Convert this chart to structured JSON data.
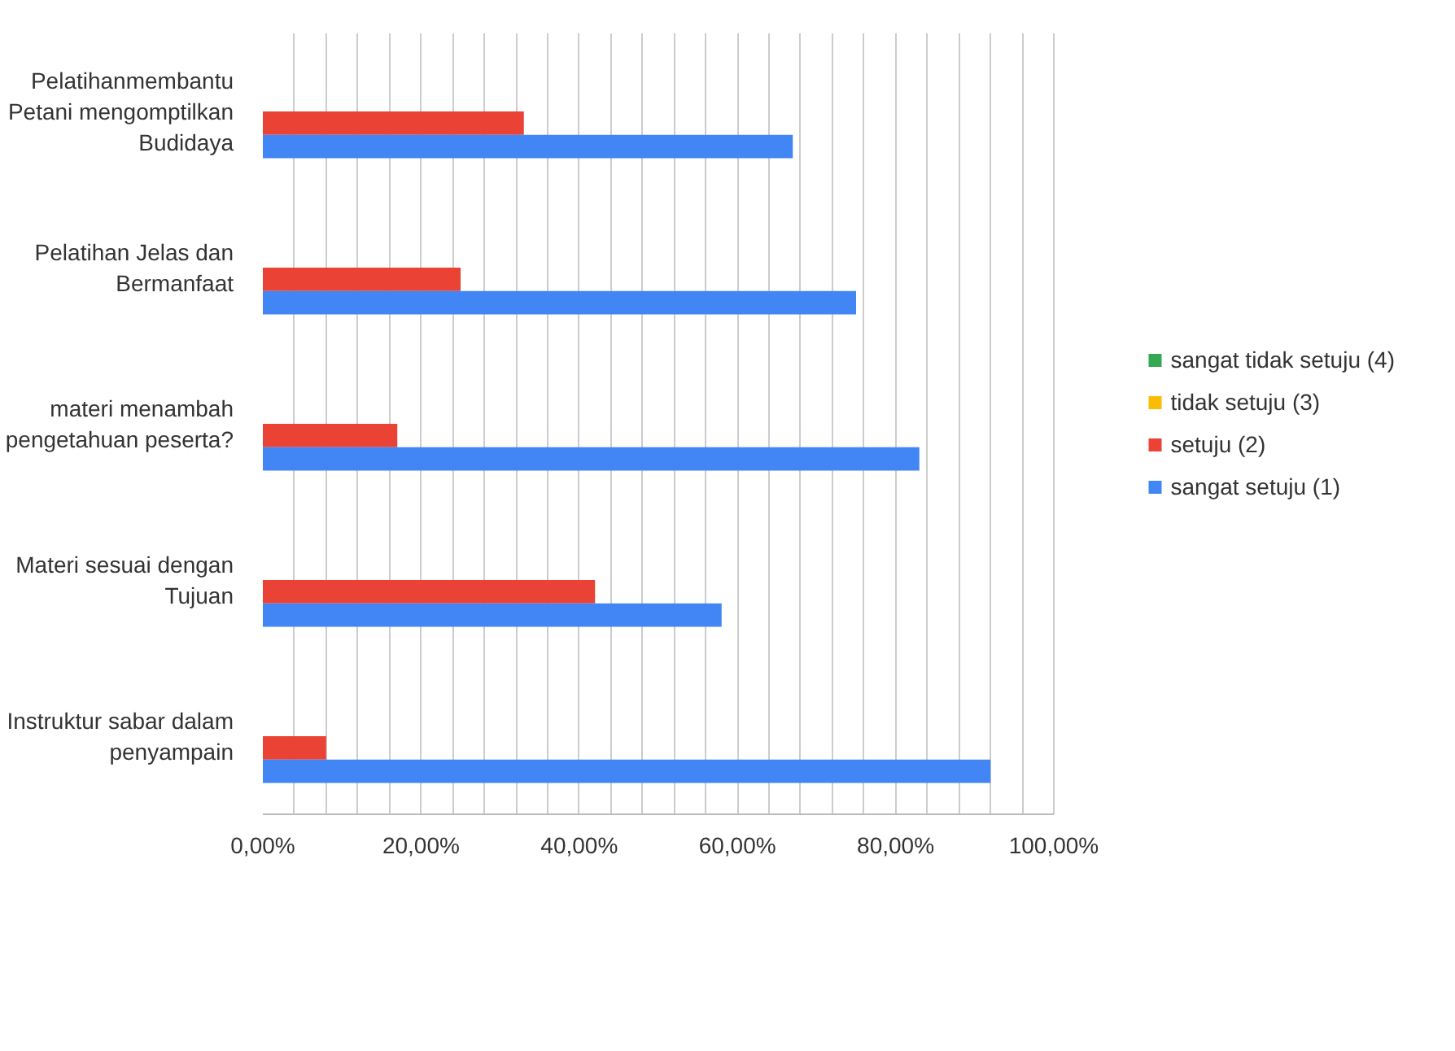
{
  "chart_data": {
    "type": "bar",
    "orientation": "horizontal",
    "categories": [
      "Pelatihanmembantu Petani mengomptilkan Budidaya",
      "Pelatihan Jelas dan Bermanfaat",
      "materi menambah pengetahuan peserta?",
      "Materi sesuai dengan Tujuan",
      "Instruktur sabar dalam penyampain"
    ],
    "series": [
      {
        "name": "sangat tidak setuju (4)",
        "color": "#34a853",
        "values": [
          0,
          0,
          0,
          0,
          0
        ]
      },
      {
        "name": "tidak setuju (3)",
        "color": "#fbbc04",
        "values": [
          0,
          0,
          0,
          0,
          0
        ]
      },
      {
        "name": "setuju (2)",
        "color": "#ea4335",
        "values": [
          33,
          25,
          17,
          42,
          8
        ]
      },
      {
        "name": "sangat setuju (1)",
        "color": "#4285f4",
        "values": [
          67,
          75,
          83,
          58,
          92
        ]
      }
    ],
    "xlim": [
      0,
      100
    ],
    "xticks": [
      {
        "value": 0,
        "label": "0,00%"
      },
      {
        "value": 4,
        "label": null
      },
      {
        "value": 8,
        "label": null
      },
      {
        "value": 12,
        "label": null
      },
      {
        "value": 16,
        "label": null
      },
      {
        "value": 20,
        "label": "20,00%"
      },
      {
        "value": 24,
        "label": null
      },
      {
        "value": 28,
        "label": null
      },
      {
        "value": 32,
        "label": null
      },
      {
        "value": 36,
        "label": null
      },
      {
        "value": 40,
        "label": "40,00%"
      },
      {
        "value": 44,
        "label": null
      },
      {
        "value": 48,
        "label": null
      },
      {
        "value": 52,
        "label": null
      },
      {
        "value": 56,
        "label": null
      },
      {
        "value": 60,
        "label": "60,00%"
      },
      {
        "value": 64,
        "label": null
      },
      {
        "value": 68,
        "label": null
      },
      {
        "value": 72,
        "label": null
      },
      {
        "value": 76,
        "label": null
      },
      {
        "value": 80,
        "label": "80,00%"
      },
      {
        "value": 84,
        "label": null
      },
      {
        "value": 88,
        "label": null
      },
      {
        "value": 92,
        "label": null
      },
      {
        "value": 96,
        "label": null
      },
      {
        "value": 100,
        "label": "100,00%"
      }
    ],
    "grid": "x",
    "legend": "right"
  }
}
